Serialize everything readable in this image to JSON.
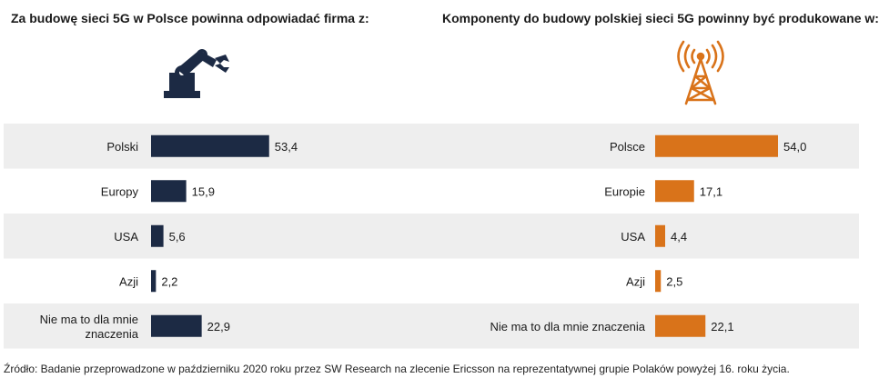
{
  "left_title": "Za budowę sieci 5G w Polsce powinna odpowiadać firma z:",
  "right_title": "Komponenty do budowy polskiej sieci 5G powinny być produkowane w:",
  "source_text": "Źródło: Badanie przeprowadzone w październiku 2020 roku przez SW Research na zlecenie Ericsson na reprezentatywnej grupie Polaków powyżej 16. roku życia.",
  "icons": {
    "left": "industrial-robot-arm-icon",
    "right": "cell-tower-icon"
  },
  "colors": {
    "left_bar": "#1c2a44",
    "right_bar": "#d9731a",
    "band": "#eeeeee"
  },
  "chart_data": [
    {
      "type": "bar",
      "orientation": "horizontal",
      "categories": [
        "Polski",
        "Europy",
        "USA",
        "Azji",
        "Nie ma to dla mnie znaczenia"
      ],
      "values": [
        53.4,
        15.9,
        5.6,
        2.2,
        22.9
      ],
      "value_labels": [
        "53,4",
        "15,9",
        "5,6",
        "2,2",
        "22,9"
      ],
      "title": "Za budowę sieci 5G w Polsce powinna odpowiadać firma z:",
      "color": "#1c2a44"
    },
    {
      "type": "bar",
      "orientation": "horizontal",
      "categories": [
        "Polsce",
        "Europie",
        "USA",
        "Azji",
        "Nie ma to dla mnie znaczenia"
      ],
      "values": [
        54.0,
        17.1,
        4.4,
        2.5,
        22.1
      ],
      "value_labels": [
        "54,0",
        "17,1",
        "4,4",
        "2,5",
        "22,1"
      ],
      "title": "Komponenty do budowy polskiej sieci 5G powinny być produkowane w:",
      "color": "#d9731a"
    }
  ]
}
